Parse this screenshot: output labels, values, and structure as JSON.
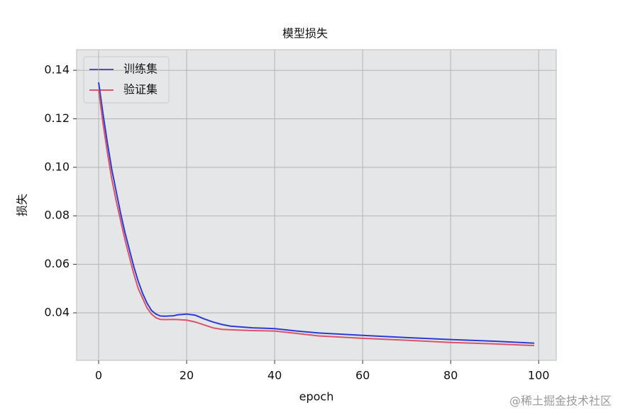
{
  "chart_data": {
    "type": "line",
    "title": "模型损失",
    "xlabel": "epoch",
    "ylabel": "损失",
    "x": [
      0,
      1,
      2,
      3,
      4,
      5,
      6,
      7,
      8,
      9,
      10,
      11,
      12,
      13,
      14,
      15,
      17,
      18,
      20,
      22,
      24,
      26,
      28,
      30,
      35,
      40,
      45,
      50,
      60,
      70,
      80,
      90,
      99
    ],
    "series": [
      {
        "name": "训练集",
        "color": "#2a3cd4",
        "values": [
          0.135,
          0.122,
          0.11,
          0.099,
          0.09,
          0.081,
          0.073,
          0.066,
          0.059,
          0.053,
          0.048,
          0.044,
          0.041,
          0.0395,
          0.0387,
          0.0386,
          0.0388,
          0.0392,
          0.0395,
          0.039,
          0.0375,
          0.0362,
          0.0352,
          0.0345,
          0.0338,
          0.0335,
          0.0325,
          0.0317,
          0.0307,
          0.0298,
          0.029,
          0.0283,
          0.0275
        ]
      },
      {
        "name": "验证集",
        "color": "#d9546a",
        "values": [
          0.132,
          0.118,
          0.106,
          0.095,
          0.086,
          0.078,
          0.07,
          0.063,
          0.056,
          0.05,
          0.046,
          0.042,
          0.0395,
          0.038,
          0.0373,
          0.0372,
          0.0373,
          0.0372,
          0.037,
          0.0362,
          0.035,
          0.0338,
          0.0332,
          0.033,
          0.0327,
          0.0325,
          0.0315,
          0.0305,
          0.0295,
          0.0287,
          0.0278,
          0.0272,
          0.0265
        ]
      }
    ],
    "xlim": [
      -5,
      104
    ],
    "ylim": [
      0.0204,
      0.1485
    ],
    "xticks": [
      0,
      20,
      40,
      60,
      80,
      100
    ],
    "yticks": [
      0.04,
      0.06,
      0.08,
      {
        "value": 0.1,
        "label": "0.10"
      },
      0.12,
      0.14
    ],
    "grid": true,
    "legend": "upper left",
    "watermark": "@稀土掘金技术社区"
  }
}
